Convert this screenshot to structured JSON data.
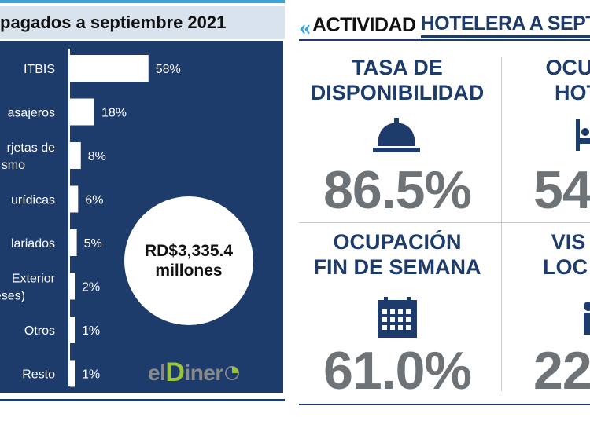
{
  "left": {
    "title": "pagados a septiembre 2021",
    "total_amount": "RD$3,335.4",
    "total_unit": "millones",
    "brand_prefix": "el",
    "brand_initial": "D",
    "brand_rest": "iner",
    "colors": {
      "panel": "#1d3b6b",
      "bar": "#ffffff",
      "accent": "#3aa3d8",
      "brand_green": "#9bc43b"
    }
  },
  "chart_data": {
    "type": "bar",
    "orientation": "horizontal",
    "categories": [
      [
        "ITBIS"
      ],
      [
        "asajeros"
      ],
      [
        "rjetas de",
        "smo"
      ],
      [
        "urídicas"
      ],
      [
        "lariados"
      ],
      [
        "Exterior",
        "eses)"
      ],
      [
        "Otros"
      ],
      [
        "Resto"
      ]
    ],
    "values": [
      58,
      18,
      8,
      6,
      5,
      2,
      1,
      1
    ],
    "value_labels": [
      "58%",
      "18%",
      "8%",
      "6%",
      "5%",
      "2%",
      "1%",
      "1%"
    ],
    "xlim": [
      0,
      100
    ]
  },
  "right": {
    "title_a": "ACTIVIDAD",
    "title_b": "HOTELERA A SEPT",
    "kpis": [
      {
        "label_1": "TASA DE",
        "label_2": "DISPONIBILIDAD",
        "value": "86.5%",
        "icon": "bell-icon"
      },
      {
        "label_1": "OCU",
        "label_2": "HOT",
        "value": "54",
        "icon": "bed-icon"
      },
      {
        "label_1": "OCUPACIÓN",
        "label_2": "FIN DE SEMANA",
        "value": "61.0%",
        "icon": "calendar-icon"
      },
      {
        "label_1": "VIS",
        "label_2": "LOC",
        "value": "22",
        "icon": "people-icon"
      }
    ],
    "colors": {
      "label": "#1d3b6b",
      "value": "#6e7378"
    }
  }
}
